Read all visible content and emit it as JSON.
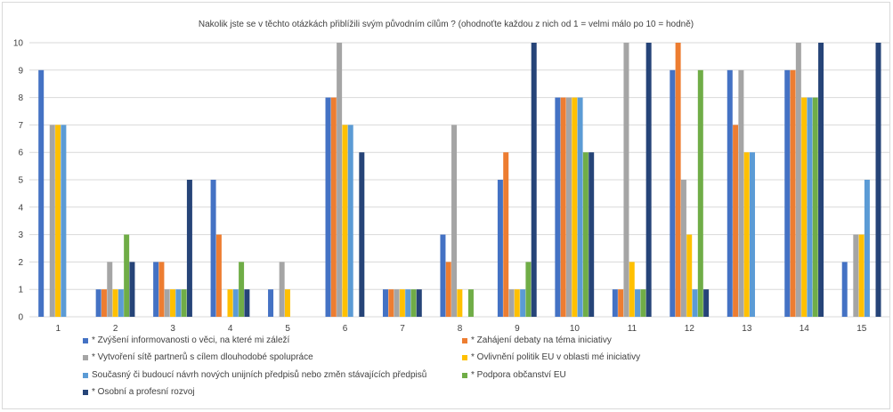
{
  "chart_data": {
    "type": "bar",
    "title": "Nakolik jste se v těchto otázkách přiblížili svým původním cílům ? (ohodnoťte každou z nich od 1 = velmi málo po 10 = hodně)",
    "xlabel": "",
    "ylabel": "",
    "ylim": [
      0,
      10
    ],
    "yticks": [
      0,
      1,
      2,
      3,
      4,
      5,
      6,
      7,
      8,
      9,
      10
    ],
    "grid": true,
    "legend_position": "bottom",
    "categories": [
      "1",
      "2",
      "3",
      "4",
      "5",
      "6",
      "7",
      "8",
      "9",
      "10",
      "11",
      "12",
      "13",
      "14",
      "15"
    ],
    "series": [
      {
        "name": "* Zvýšení informovanosti o věci, na které mi záleží",
        "color": "#4472C4",
        "values": [
          9,
          1,
          2,
          5,
          1,
          8,
          1,
          3,
          5,
          8,
          1,
          9,
          9,
          9,
          2
        ]
      },
      {
        "name": "* Zahájení debaty na téma iniciativy",
        "color": "#ED7D31",
        "values": [
          0,
          1,
          2,
          3,
          0,
          8,
          1,
          2,
          6,
          8,
          1,
          10,
          7,
          9,
          0
        ]
      },
      {
        "name": "* Vytvoření sítě partnerů s cílem dlouhodobé spolupráce",
        "color": "#A5A5A5",
        "values": [
          7,
          2,
          1,
          0,
          2,
          10,
          1,
          7,
          1,
          8,
          10,
          5,
          9,
          10,
          3
        ]
      },
      {
        "name": "* Ovlivnění politik EU v oblasti mé iniciativy",
        "color": "#FFC000",
        "values": [
          7,
          1,
          1,
          1,
          1,
          7,
          1,
          1,
          1,
          8,
          2,
          3,
          6,
          8,
          3
        ]
      },
      {
        "name": "Současný či budoucí návrh nových unijních předpisů nebo změn stávajících předpisů",
        "color": "#5B9BD5",
        "values": [
          7,
          1,
          1,
          1,
          0,
          7,
          1,
          0,
          1,
          8,
          1,
          1,
          6,
          8,
          5
        ]
      },
      {
        "name": "* Podpora občanství EU",
        "color": "#70AD47",
        "values": [
          0,
          3,
          1,
          2,
          0,
          0,
          1,
          1,
          2,
          6,
          1,
          9,
          0,
          8,
          0
        ]
      },
      {
        "name": "* Osobní a profesní rozvoj",
        "color": "#264478",
        "values": [
          0,
          2,
          5,
          1,
          0,
          6,
          1,
          0,
          10,
          6,
          10,
          1,
          0,
          10,
          10
        ]
      }
    ]
  }
}
